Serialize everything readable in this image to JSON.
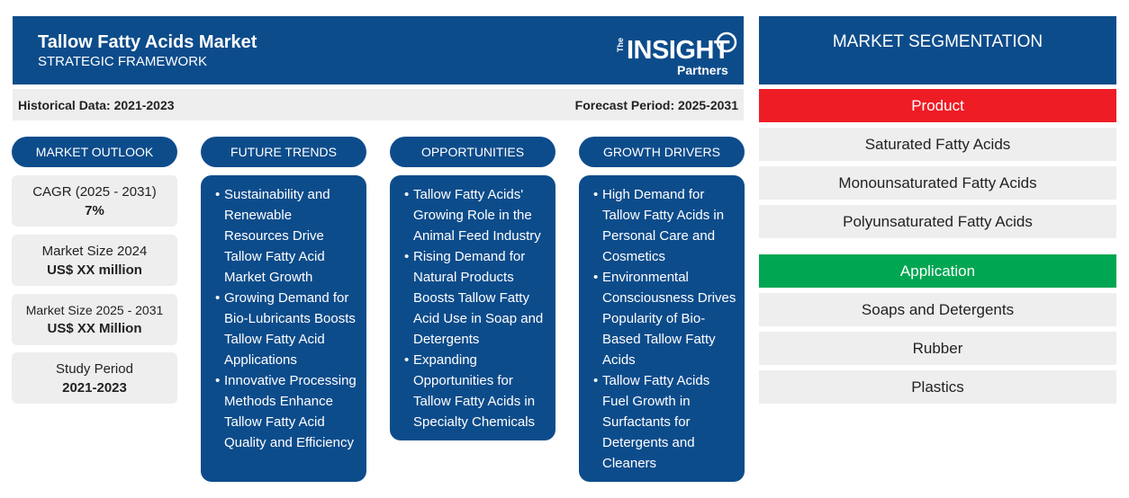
{
  "header": {
    "title": "Tallow Fatty Acids Market",
    "subtitle": "STRATEGIC FRAMEWORK",
    "logo": {
      "the": "The",
      "insight": "INSIGHT",
      "partners": "Partners"
    }
  },
  "periods": {
    "historical": "Historical Data: 2021-2023",
    "forecast": "Forecast Period: 2025-2031"
  },
  "market_outlook": {
    "heading": "MARKET OUTLOOK",
    "stats": [
      {
        "label": "CAGR (2025 - 2031)",
        "value": "7%"
      },
      {
        "label": "Market Size 2024",
        "value": "US$ XX million"
      },
      {
        "label": "Market Size 2025 - 2031",
        "value": "US$ XX Million"
      },
      {
        "label": "Study Period",
        "value": "2021-2023"
      }
    ]
  },
  "future_trends": {
    "heading": "FUTURE TRENDS",
    "items": [
      "Sustainability and Renewable Resources Drive Tallow Fatty Acid Market Growth",
      "Growing Demand for Bio-Lubricants Boosts Tallow Fatty Acid Applications",
      "Innovative Processing Methods Enhance Tallow Fatty Acid Quality and Efficiency"
    ]
  },
  "opportunities": {
    "heading": "OPPORTUNITIES",
    "items": [
      "Tallow Fatty Acids' Growing Role in the Animal Feed Industry",
      "Rising Demand for Natural Products Boosts Tallow Fatty Acid Use in Soap and Detergents",
      "Expanding Opportunities for Tallow Fatty Acids in Specialty Chemicals"
    ]
  },
  "growth_drivers": {
    "heading": "GROWTH DRIVERS",
    "items": [
      "High Demand for Tallow Fatty Acids in Personal Care and Cosmetics",
      "Environmental Consciousness Drives Popularity of Bio-Based Tallow Fatty Acids",
      "Tallow Fatty Acids Fuel Growth in Surfactants for Detergents and Cleaners"
    ]
  },
  "segmentation": {
    "heading": "MARKET SEGMENTATION",
    "product": {
      "label": "Product",
      "color": "#ee1c25",
      "items": [
        "Saturated Fatty Acids",
        "Monounsaturated Fatty Acids",
        "Polyunsaturated Fatty Acids"
      ]
    },
    "application": {
      "label": "Application",
      "color": "#00a651",
      "items": [
        "Soaps and Detergents",
        "Rubber",
        "Plastics"
      ]
    }
  },
  "colors": {
    "brand_blue": "#0d4c8b",
    "panel_gray": "#eeeeee"
  }
}
